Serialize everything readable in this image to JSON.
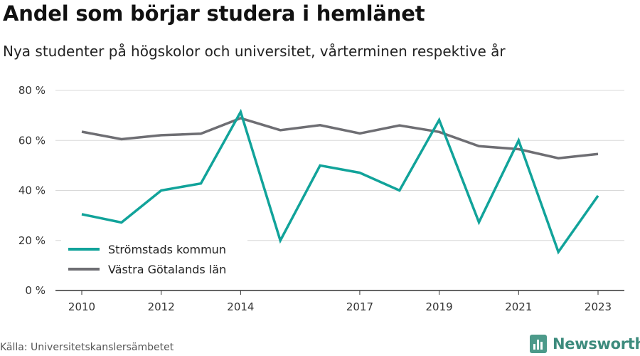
{
  "header": {
    "title": "Andel som börjar studera i hemlänet",
    "subtitle": "Nya studenter på högskolor och universitet, vårterminen respektive år"
  },
  "footer": {
    "source": "Källa: Universitetskanslersämbetet",
    "brand": "Newsworthy"
  },
  "colors": {
    "stromstad": "#11a39a",
    "vastra_gotaland": "#6e6e73",
    "grid": "#d9d9d9",
    "brand": "#3d8b7d"
  },
  "chart_data": {
    "type": "line",
    "x": [
      2010,
      2011,
      2012,
      2013,
      2014,
      2015,
      2016,
      2017,
      2018,
      2019,
      2020,
      2021,
      2022,
      2023
    ],
    "xticks": [
      2010,
      2012,
      2014,
      2017,
      2019,
      2021,
      2023
    ],
    "xlim": [
      2010,
      2023
    ],
    "ylim": [
      0,
      80
    ],
    "yticks": [
      0,
      20,
      40,
      60,
      80
    ],
    "ytick_labels": [
      "0 %",
      "20 %",
      "40 %",
      "60 %",
      "80 %"
    ],
    "grid": true,
    "legend_position": "bottom-left",
    "series": [
      {
        "name": "Strömstads kommun",
        "key": "stromstad",
        "values": [
          30.5,
          27.2,
          40.0,
          42.8,
          71.4,
          20.0,
          50.0,
          47.1,
          40.0,
          68.2,
          27.3,
          60.0,
          15.4,
          37.9
        ]
      },
      {
        "name": "Västra Götalands län",
        "key": "vastra_gotaland",
        "values": [
          63.5,
          60.5,
          62.1,
          62.7,
          68.9,
          64.1,
          66.1,
          62.8,
          66.0,
          63.4,
          57.7,
          56.5,
          52.9,
          54.6
        ]
      }
    ]
  }
}
